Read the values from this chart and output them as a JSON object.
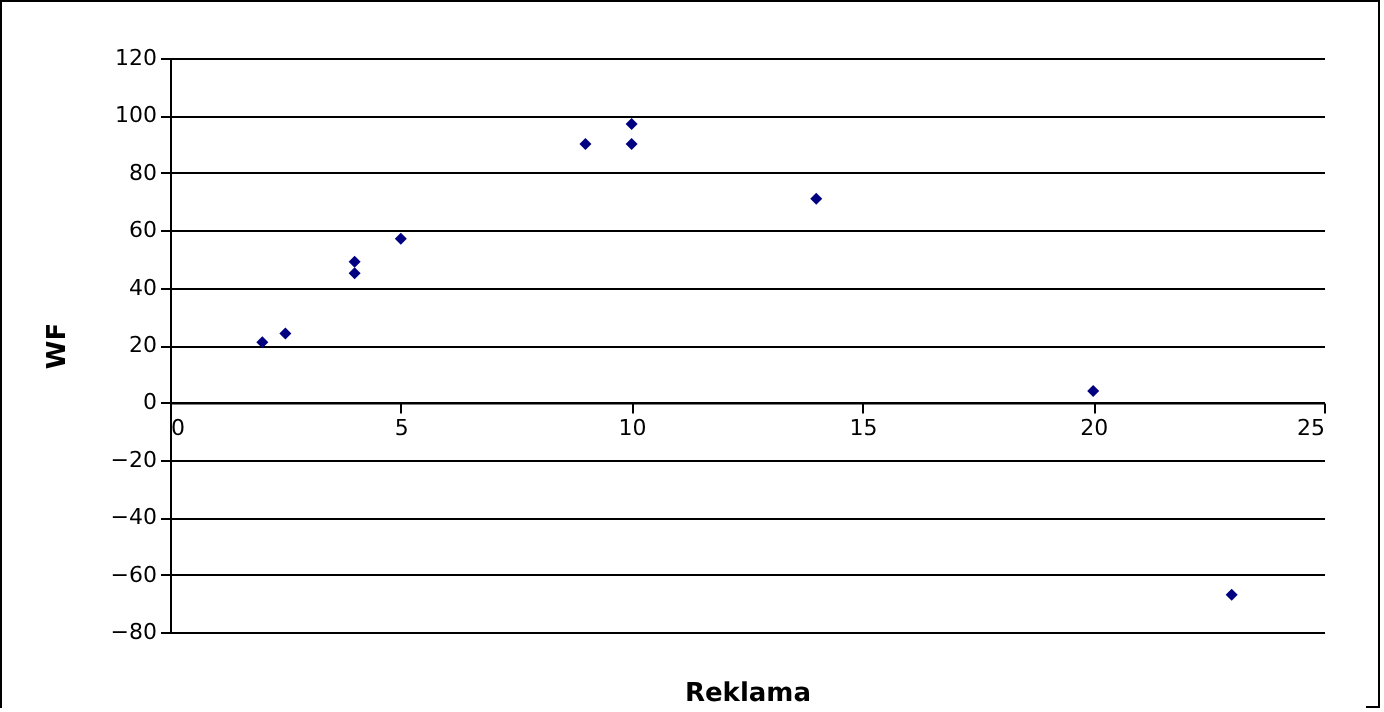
{
  "chart_data": {
    "type": "scatter",
    "xlabel": "Reklama",
    "ylabel": "WF",
    "x": [
      2,
      2.5,
      4,
      4,
      5,
      9,
      10,
      10,
      14,
      20,
      23
    ],
    "series": [
      {
        "color": "#000080",
        "values": [
          21,
          24,
          49,
          45,
          57,
          90,
          97,
          90,
          71,
          4,
          -67
        ]
      }
    ],
    "xlim": [
      0,
      25
    ],
    "xticks": [
      0,
      5,
      10,
      15,
      20,
      25
    ],
    "ylim": [
      -80,
      120
    ],
    "yticks": [
      -80,
      -60,
      -40,
      -20,
      0,
      20,
      40,
      60,
      80,
      100,
      120
    ],
    "grid": "y",
    "marker": "diamond"
  }
}
